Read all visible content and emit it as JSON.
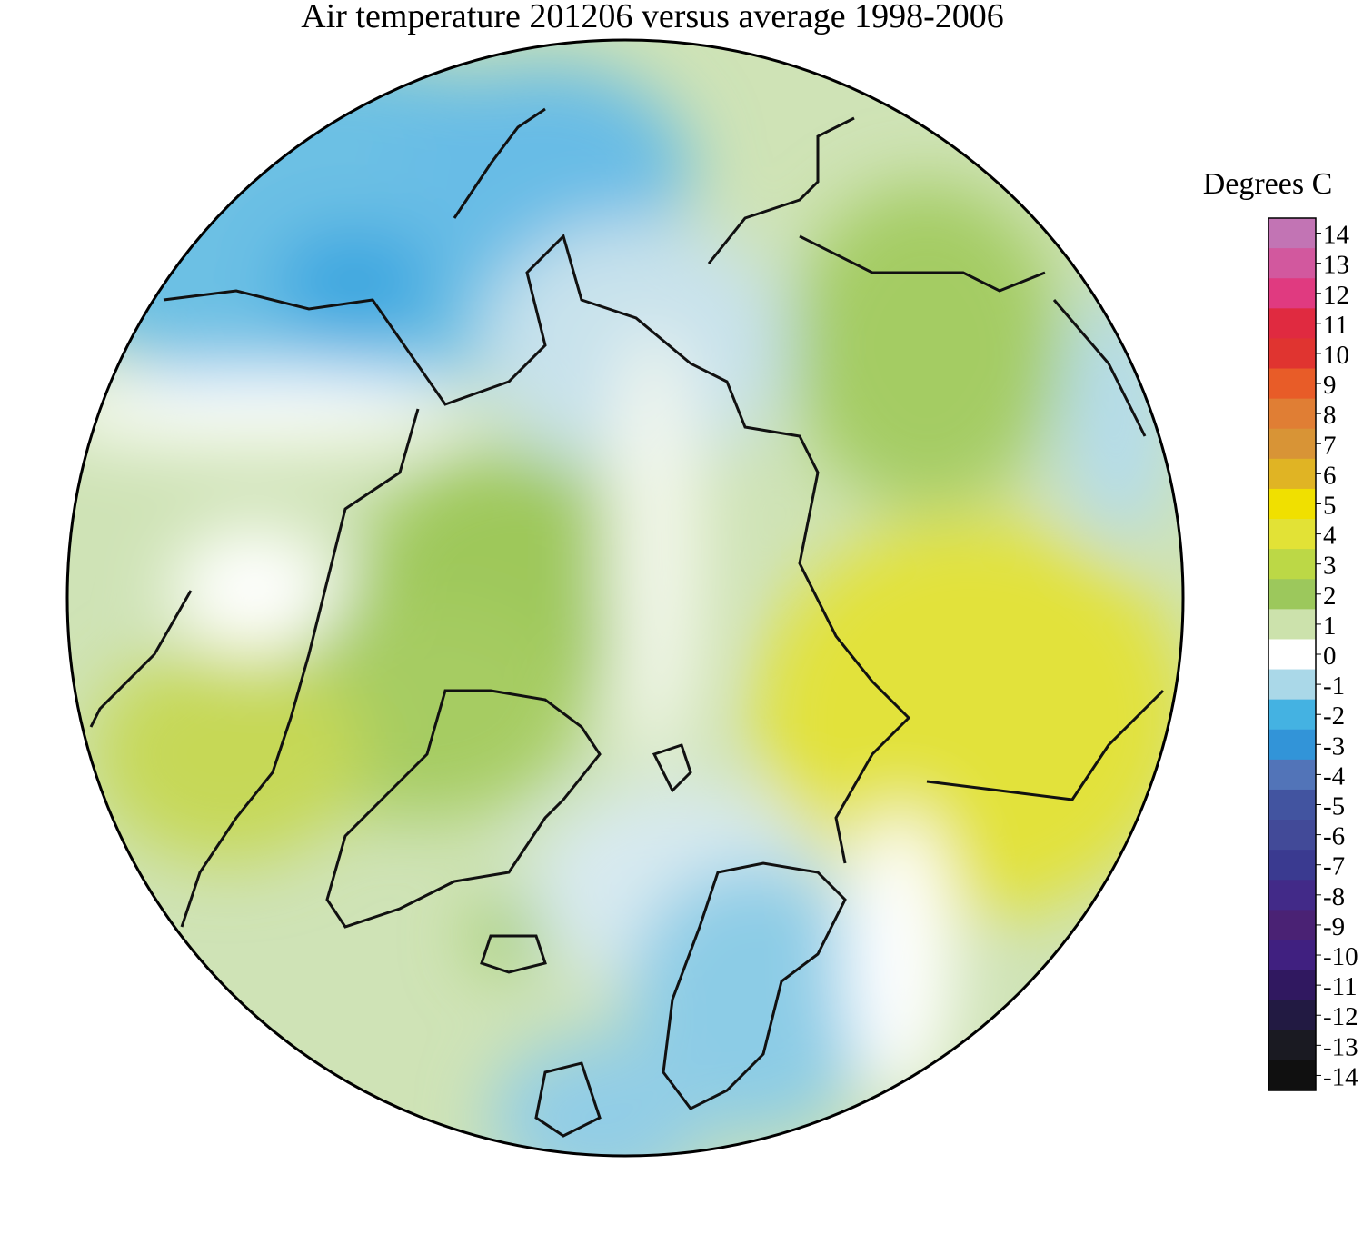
{
  "title": "Air temperature 201206 versus average 1998-2006",
  "colorbar": {
    "label": "Degrees C",
    "ticks": [
      14,
      13,
      12,
      11,
      10,
      9,
      8,
      7,
      6,
      5,
      4,
      3,
      2,
      1,
      0,
      -1,
      -2,
      -3,
      -4,
      -5,
      -6,
      -7,
      -8,
      -9,
      -10,
      -11,
      -12,
      -13,
      -14
    ],
    "colors": [
      "#c274b4",
      "#d2589e",
      "#e03a80",
      "#e02a40",
      "#e03430",
      "#e85c28",
      "#e07e34",
      "#d89436",
      "#e0b424",
      "#f0e000",
      "#e2e236",
      "#bcd846",
      "#9cc85c",
      "#cce2ac",
      "#ffffff",
      "#aad8e8",
      "#44b2e2",
      "#3294d8",
      "#5274b8",
      "#4254a0",
      "#424a98",
      "#3a3a90",
      "#422a88",
      "#4a2274",
      "#402080",
      "#301860",
      "#221a42",
      "#1a1a22",
      "#101010"
    ]
  }
}
